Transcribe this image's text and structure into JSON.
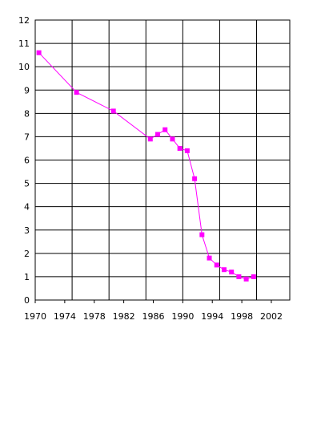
{
  "chart_data": {
    "type": "line",
    "title": "",
    "xlabel": "",
    "ylabel": "",
    "xlim": [
      1970,
      2004.5
    ],
    "ylim": [
      0,
      12
    ],
    "x_ticks": [
      1970,
      1974,
      1978,
      1982,
      1986,
      1990,
      1994,
      1998,
      2002
    ],
    "x_tick_labels": [
      "1970",
      "1974",
      "1978",
      "1982",
      "1986",
      "1990",
      "1994",
      "1998",
      "2002"
    ],
    "y_ticks": [
      0,
      1,
      2,
      3,
      4,
      5,
      6,
      7,
      8,
      9,
      10,
      11,
      12
    ],
    "y_tick_labels": [
      "0",
      "1",
      "2",
      "3",
      "4",
      "5",
      "6",
      "7",
      "8",
      "9",
      "10",
      "11",
      "12"
    ],
    "x_gridlines": [
      1975,
      1980,
      1985,
      1990,
      1995,
      2000
    ],
    "grid": true,
    "legend": false,
    "series": [
      {
        "color": "#ff00ff",
        "marker": "square",
        "points": [
          {
            "x": 1970.5,
            "y": 10.6
          },
          {
            "x": 1975.6,
            "y": 8.9
          },
          {
            "x": 1980.6,
            "y": 8.1
          },
          {
            "x": 1985.6,
            "y": 6.9
          },
          {
            "x": 1986.6,
            "y": 7.1
          },
          {
            "x": 1987.6,
            "y": 7.3
          },
          {
            "x": 1988.6,
            "y": 6.9
          },
          {
            "x": 1989.6,
            "y": 6.5
          },
          {
            "x": 1990.6,
            "y": 6.4
          },
          {
            "x": 1991.6,
            "y": 5.2
          },
          {
            "x": 1992.6,
            "y": 2.8
          },
          {
            "x": 1993.6,
            "y": 1.8
          },
          {
            "x": 1994.6,
            "y": 1.5
          },
          {
            "x": 1995.6,
            "y": 1.3
          },
          {
            "x": 1996.6,
            "y": 1.2
          },
          {
            "x": 1997.6,
            "y": 1.0
          },
          {
            "x": 1998.6,
            "y": 0.9
          },
          {
            "x": 1999.6,
            "y": 1.0
          }
        ]
      }
    ]
  }
}
